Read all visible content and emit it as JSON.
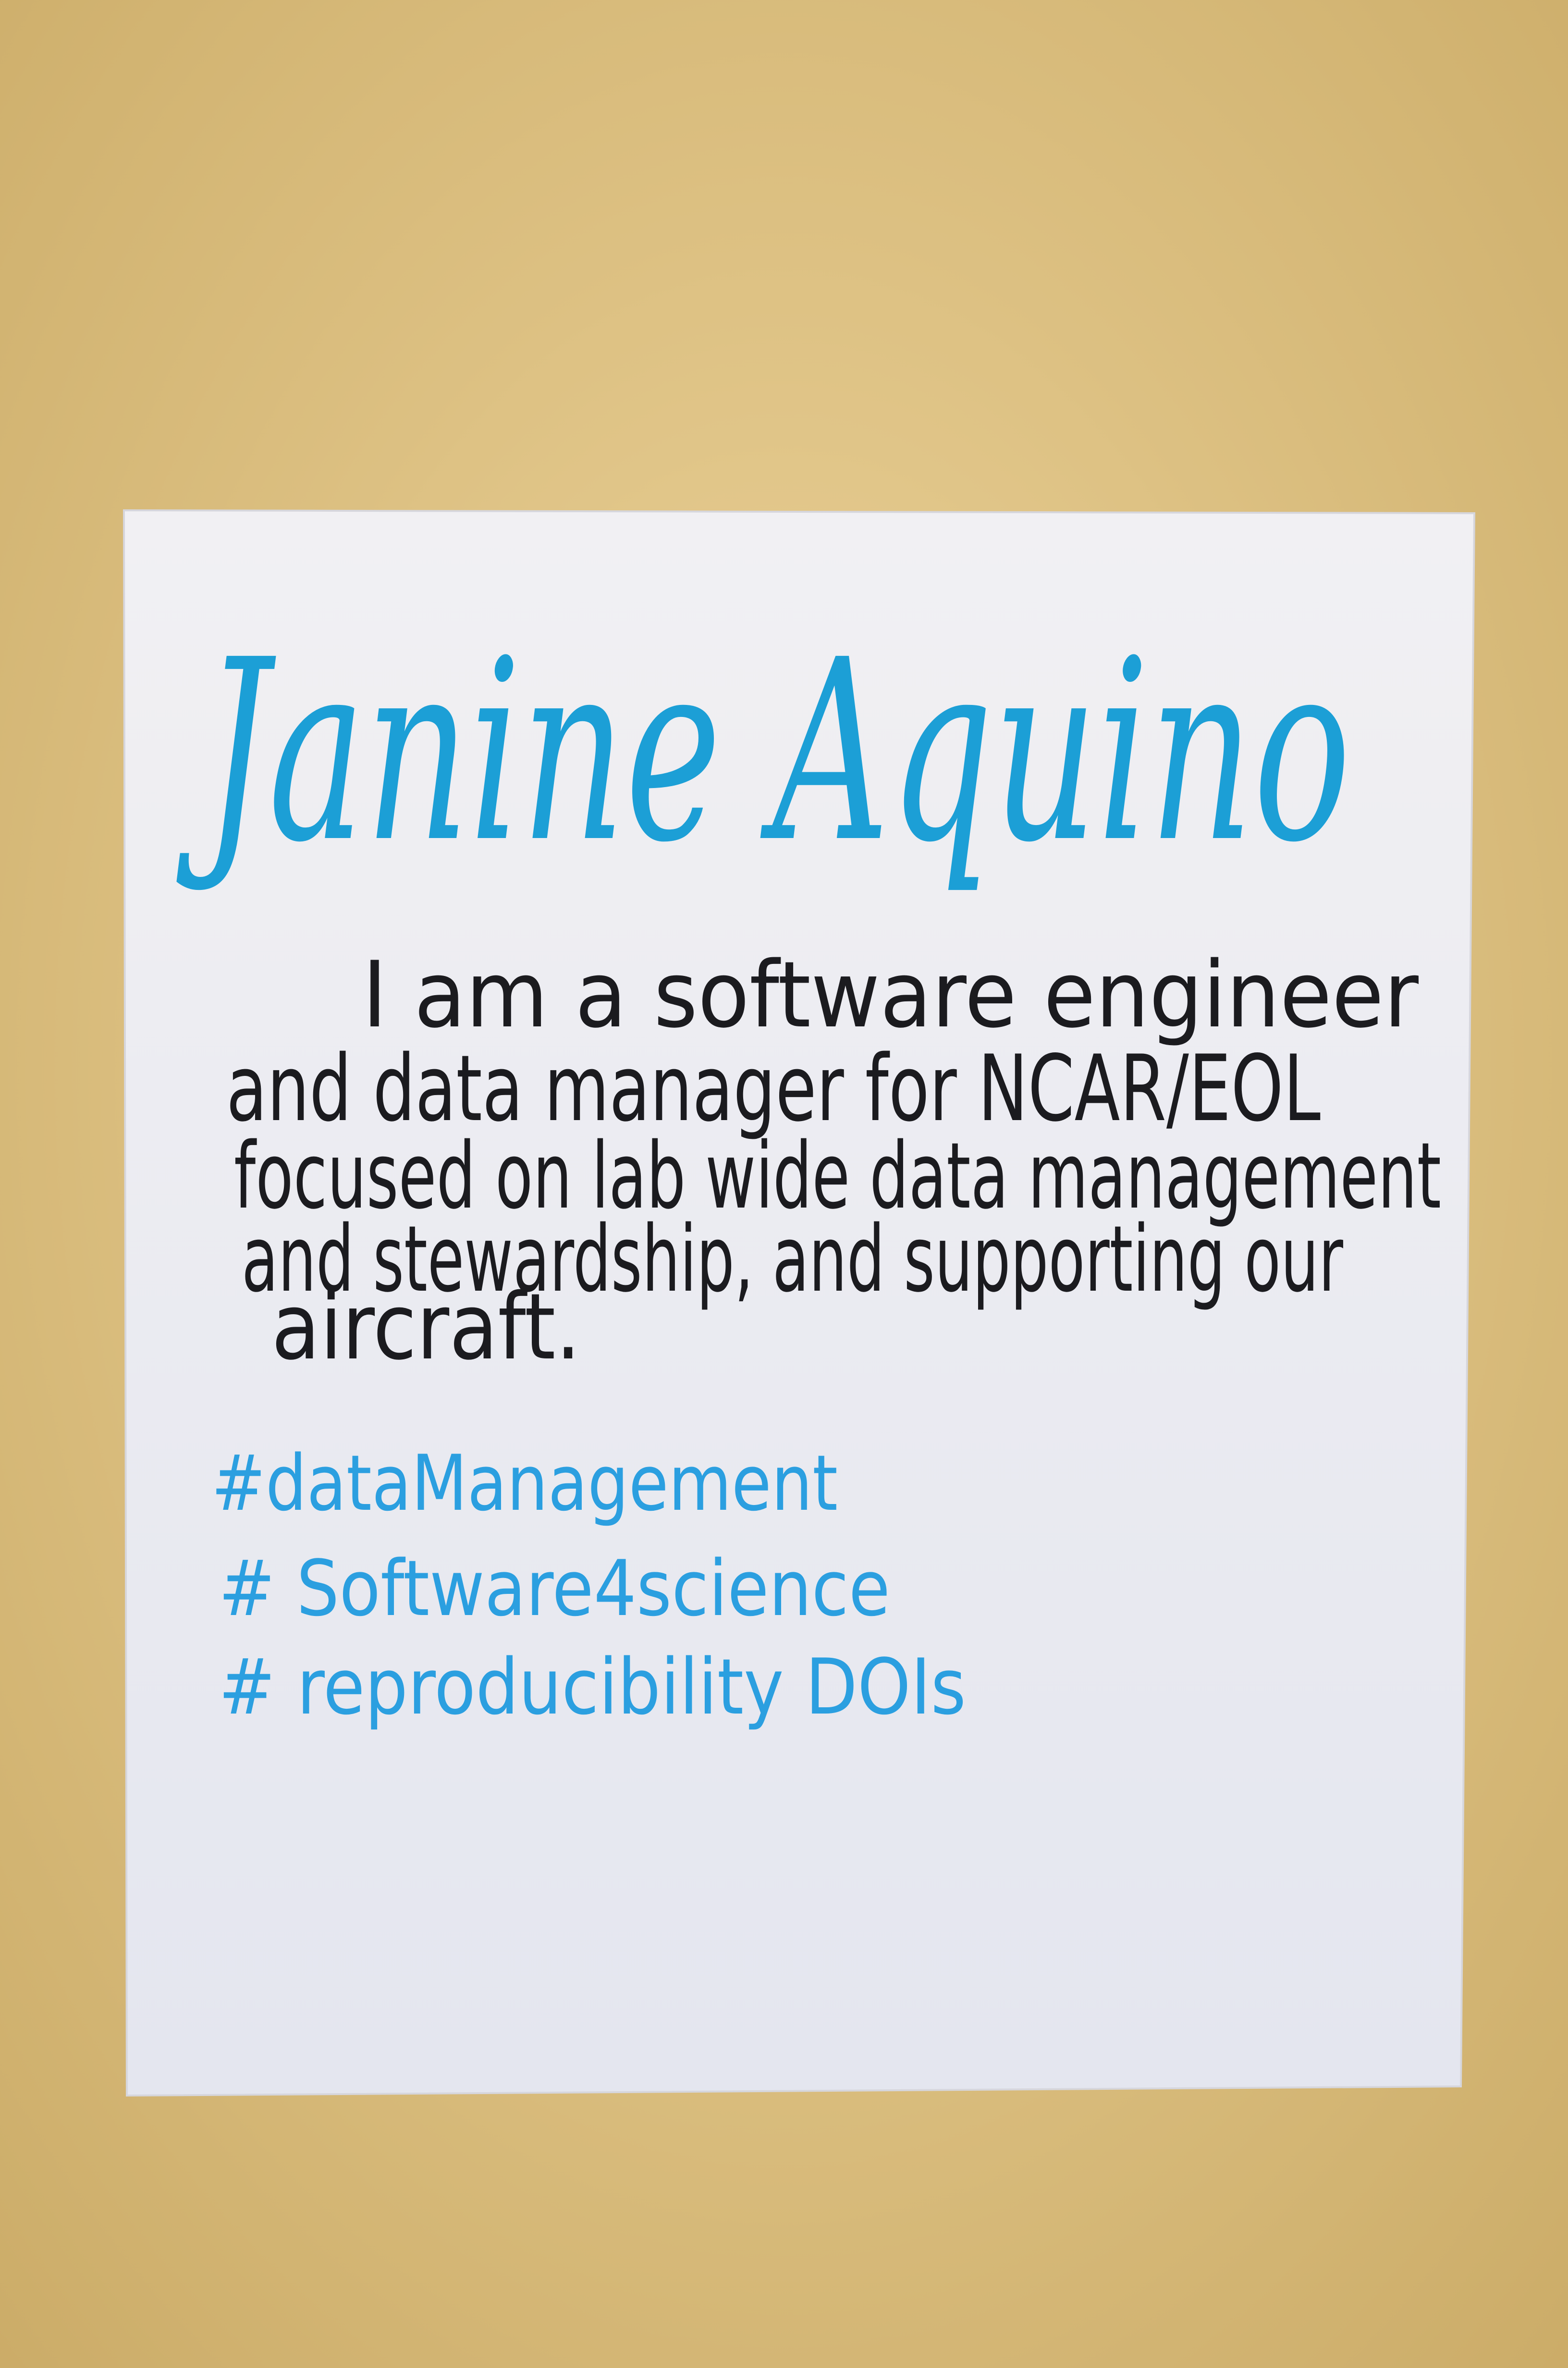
{
  "poster": {
    "title": "Janine Aquino",
    "body": [
      "I am a software engineer",
      "and data manager for NCAR/EOL",
      "focused on lab wide data management",
      "and stewardship, and supporting our",
      "aircraft."
    ],
    "hashtags": [
      "#dataManagement",
      "# Software4science",
      "# reproducibility DOIs"
    ]
  }
}
